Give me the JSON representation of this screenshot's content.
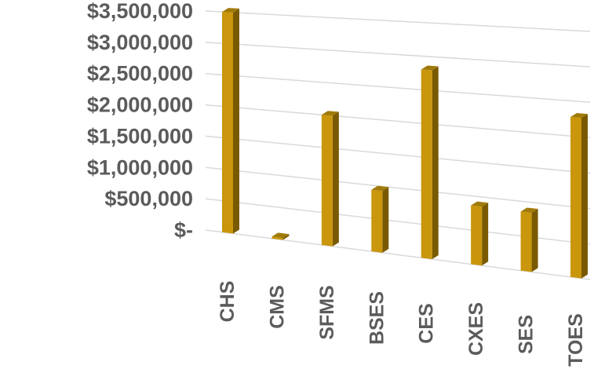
{
  "chart_data": {
    "type": "bar",
    "title": "",
    "xlabel": "",
    "ylabel": "",
    "categories": [
      "CHS",
      "CMS",
      "SFMS",
      "BSES",
      "CES",
      "CXES",
      "SES",
      "TOES"
    ],
    "values": [
      3500000,
      30000,
      2000000,
      930000,
      2800000,
      860000,
      850000,
      2270000
    ],
    "ylim": [
      0,
      3500000
    ],
    "y_ticks": [
      {
        "value": 0,
        "label": "$-"
      },
      {
        "value": 500000,
        "label": "$500,000"
      },
      {
        "value": 1000000,
        "label": "$1,000,000"
      },
      {
        "value": 1500000,
        "label": "$1,500,000"
      },
      {
        "value": 2000000,
        "label": "$2,000,000"
      },
      {
        "value": 2500000,
        "label": "$2,500,000"
      },
      {
        "value": 3000000,
        "label": "$3,000,000"
      },
      {
        "value": 3500000,
        "label": "$3,500,000"
      }
    ],
    "grid": true,
    "legend": "none",
    "style": "3d-perspective",
    "bar_color": "#C9960C",
    "bar_side_color": "#7A5A00",
    "bar_top_color": "#A07A0A"
  }
}
